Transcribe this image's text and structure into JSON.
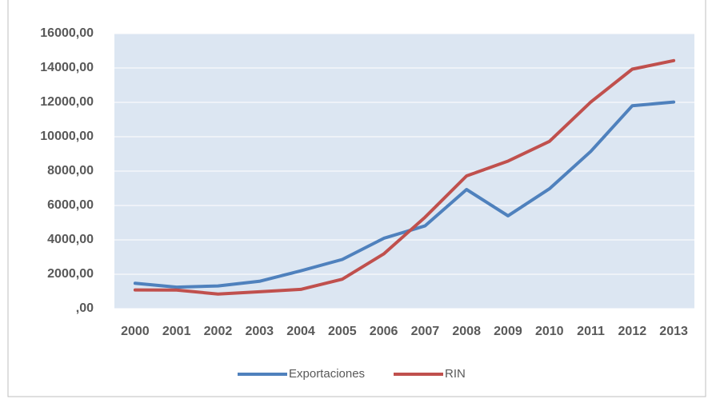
{
  "chart_data": {
    "type": "line",
    "categories": [
      "2000",
      "2001",
      "2002",
      "2003",
      "2004",
      "2005",
      "2006",
      "2007",
      "2008",
      "2009",
      "2010",
      "2011",
      "2012",
      "2013"
    ],
    "series": [
      {
        "name": "Exportaciones",
        "color": "#4f81bd",
        "values": [
          1475,
          1250,
          1320,
          1590,
          2200,
          2860,
          4090,
          4820,
          6930,
          5400,
          6970,
          9150,
          11800,
          12020
        ]
      },
      {
        "name": "RIN",
        "color": "#c0504d",
        "values": [
          1090,
          1080,
          850,
          980,
          1120,
          1710,
          3180,
          5320,
          7720,
          8580,
          9730,
          12020,
          13930,
          14430
        ]
      }
    ],
    "ylim": [
      0,
      16000
    ],
    "yticks": [
      {
        "value": 0,
        "label": ",00"
      },
      {
        "value": 2000,
        "label": "2000,00"
      },
      {
        "value": 4000,
        "label": "4000,00"
      },
      {
        "value": 6000,
        "label": "6000,00"
      },
      {
        "value": 8000,
        "label": "8000,00"
      },
      {
        "value": 10000,
        "label": "10000,00"
      },
      {
        "value": 12000,
        "label": "12000,00"
      },
      {
        "value": 14000,
        "label": "14000,00"
      },
      {
        "value": 16000,
        "label": "16000,00"
      }
    ],
    "grid": true,
    "legend": "bottom",
    "plot_background": "#dce6f2"
  }
}
